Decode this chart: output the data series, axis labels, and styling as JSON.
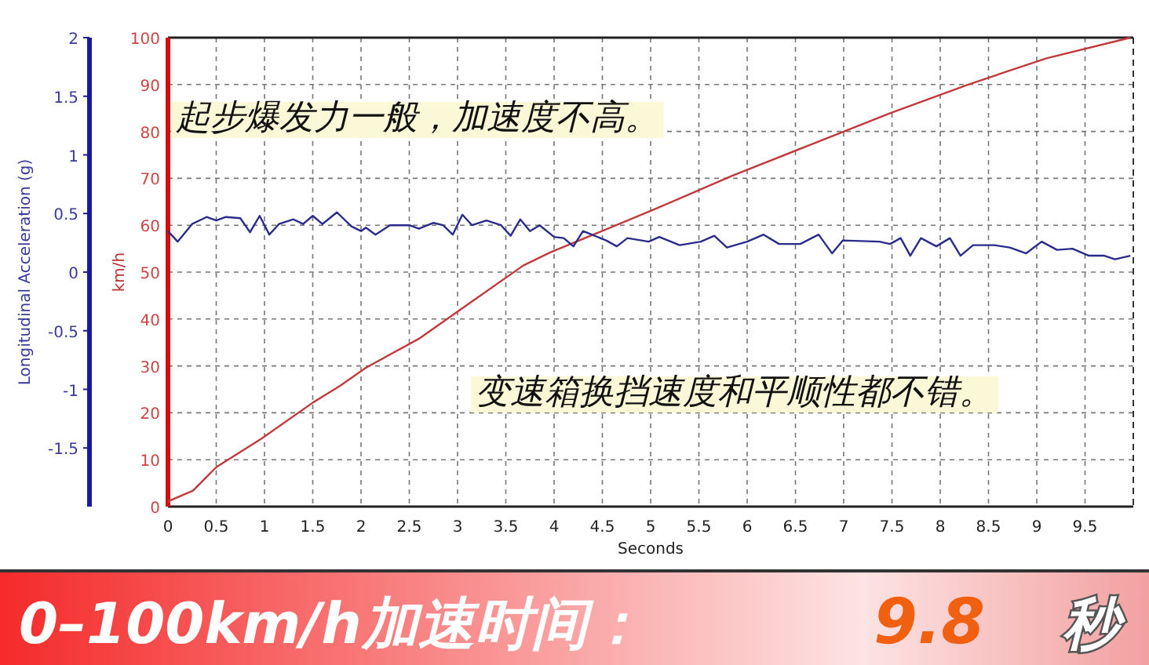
{
  "chart_data": {
    "type": "line",
    "xlabel": "Seconds",
    "ylabel": "km/h",
    "y2label": "Longitudinal Acceleration (g)",
    "xlim": [
      0,
      10
    ],
    "xticks": [
      0,
      0.5,
      1,
      1.5,
      2,
      2.5,
      3,
      3.5,
      4,
      4.5,
      5,
      5.5,
      6,
      6.5,
      7,
      7.5,
      8,
      8.5,
      9,
      9.5
    ],
    "ylim": [
      0,
      100
    ],
    "yticks": [
      0,
      10,
      20,
      30,
      40,
      50,
      60,
      70,
      80,
      90,
      100
    ],
    "y2lim": [
      -2,
      2
    ],
    "y2ticks": [
      -1.5,
      -1,
      -0.5,
      0,
      0.5,
      1,
      1.5,
      2
    ],
    "grid": true,
    "marker": "none",
    "line_style": "solid",
    "series": [
      {
        "color": "#c0393b",
        "x": [
          0,
          0.26,
          0.5,
          0.97,
          1.51,
          1.78,
          2.05,
          2.6,
          3.14,
          3.68,
          3.96,
          4.22,
          5.03,
          5.85,
          6.66,
          7.48,
          8.29,
          9.1,
          9.97
        ],
        "values": [
          1.1,
          3.4,
          8.4,
          14.5,
          22.3,
          25.7,
          29.6,
          35.8,
          43.6,
          51.4,
          54.2,
          56.4,
          63.3,
          70.6,
          77.2,
          83.9,
          90,
          95.6,
          100
        ]
      },
      {
        "color": "#2b2b8c",
        "axis": "y2",
        "x": [
          0,
          0.1,
          0.25,
          0.4,
          0.5,
          0.6,
          0.75,
          0.85,
          0.95,
          1.05,
          1.15,
          1.3,
          1.4,
          1.5,
          1.6,
          1.75,
          1.9,
          2,
          2.05,
          2.15,
          2.3,
          2.5,
          2.6,
          2.75,
          2.85,
          2.95,
          3.05,
          3.15,
          3.3,
          3.45,
          3.55,
          3.65,
          3.75,
          3.85,
          4,
          4.1,
          4.2,
          4.3,
          4.54,
          4.65,
          4.76,
          4.98,
          5.09,
          5.3,
          5.52,
          5.66,
          5.79,
          6,
          6.17,
          6.33,
          6.55,
          6.74,
          6.88,
          6.99,
          7.37,
          7.48,
          7.59,
          7.69,
          7.8,
          7.96,
          8.1,
          8.21,
          8.34,
          8.56,
          8.72,
          8.89,
          9.05,
          9.21,
          9.37,
          9.54,
          9.7,
          9.81,
          9.97
        ],
        "values": [
          0.35,
          0.26,
          0.41,
          0.47,
          0.44,
          0.47,
          0.46,
          0.34,
          0.48,
          0.32,
          0.41,
          0.45,
          0.41,
          0.48,
          0.41,
          0.51,
          0.39,
          0.35,
          0.38,
          0.32,
          0.4,
          0.4,
          0.37,
          0.42,
          0.4,
          0.32,
          0.49,
          0.4,
          0.44,
          0.4,
          0.31,
          0.45,
          0.35,
          0.4,
          0.3,
          0.29,
          0.22,
          0.35,
          0.27,
          0.22,
          0.29,
          0.26,
          0.3,
          0.23,
          0.26,
          0.31,
          0.21,
          0.26,
          0.32,
          0.24,
          0.24,
          0.32,
          0.16,
          0.27,
          0.26,
          0.24,
          0.29,
          0.14,
          0.29,
          0.22,
          0.29,
          0.14,
          0.23,
          0.23,
          0.21,
          0.16,
          0.26,
          0.19,
          0.2,
          0.14,
          0.14,
          0.11,
          0.14
        ]
      }
    ],
    "annotations": [
      "起步爆发力一般，加速度不高。",
      "变速箱换挡速度和平顺性都不错。",
      "0–100km/h加速时间：",
      "9.8",
      "秒"
    ]
  }
}
